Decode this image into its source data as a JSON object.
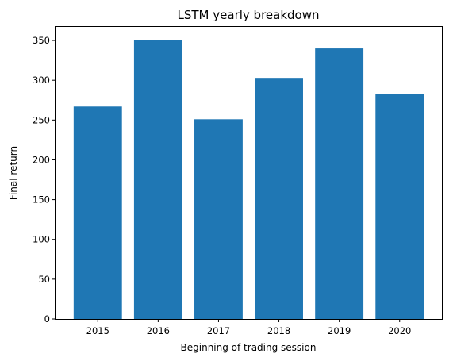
{
  "chart_data": {
    "type": "bar",
    "title": "LSTM yearly breakdown",
    "xlabel": "Beginning of trading session",
    "ylabel": "Final return",
    "categories": [
      "2015",
      "2016",
      "2017",
      "2018",
      "2019",
      "2020"
    ],
    "values": [
      267,
      351,
      251,
      303,
      340,
      283
    ],
    "ylim": [
      0,
      367
    ],
    "yticks": [
      0,
      50,
      100,
      150,
      200,
      250,
      300,
      350
    ],
    "grid": false,
    "bar_color": "#1f77b4"
  }
}
